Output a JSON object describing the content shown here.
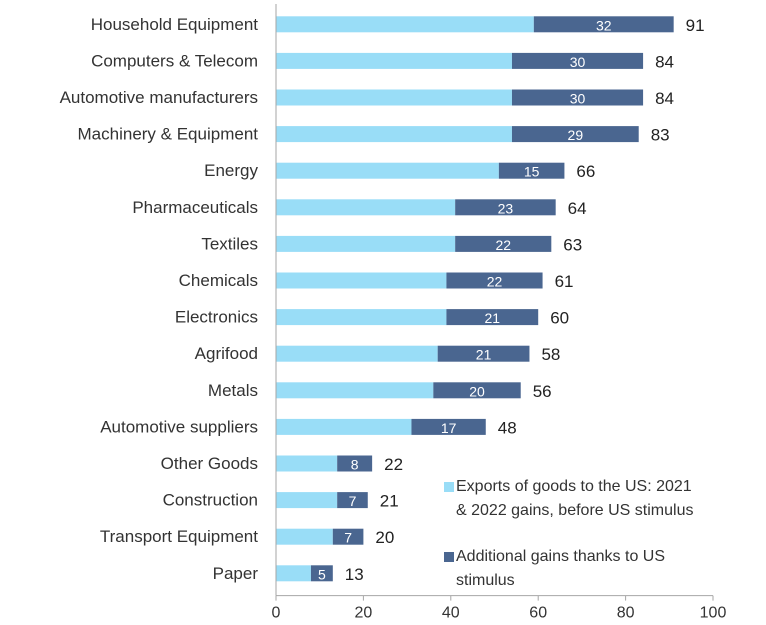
{
  "colors": {
    "base": "#99DDF7",
    "additional": "#4A6690",
    "axis": "#A6A6A6"
  },
  "chart_data": {
    "type": "bar",
    "orientation": "horizontal",
    "stacked": true,
    "categories": [
      "Household Equipment",
      "Computers & Telecom",
      "Automotive manufacturers",
      "Machinery & Equipment",
      "Energy",
      "Pharmaceuticals",
      "Textiles",
      "Chemicals",
      "Electronics",
      "Agrifood",
      "Metals",
      "Automotive suppliers",
      "Other Goods",
      "Construction",
      "Transport Equipment",
      "Paper"
    ],
    "series": [
      {
        "name": "Exports of goods to the US: 2021 & 2022 gains, before US stimulus",
        "values": [
          59,
          54,
          54,
          54,
          51,
          41,
          41,
          39,
          39,
          37,
          36,
          31,
          14,
          14,
          13,
          8
        ]
      },
      {
        "name": "Additional gains thanks to US stimulus",
        "values": [
          32,
          30,
          30,
          29,
          15,
          23,
          22,
          22,
          21,
          21,
          20,
          17,
          8,
          7,
          7,
          5
        ]
      }
    ],
    "totals": [
      91,
      84,
      84,
      83,
      66,
      64,
      63,
      61,
      60,
      58,
      56,
      48,
      22,
      21,
      20,
      13
    ],
    "xticks": [
      0,
      20,
      40,
      60,
      80,
      100
    ],
    "xlim": [
      0,
      100
    ],
    "grid": false,
    "legend_position": "bottom-right",
    "legend_lines": [
      [
        "Exports of goods to the US: 2021",
        "& 2022 gains, before US stimulus"
      ],
      [
        "Additional gains thanks to US",
        "stimulus"
      ]
    ]
  }
}
